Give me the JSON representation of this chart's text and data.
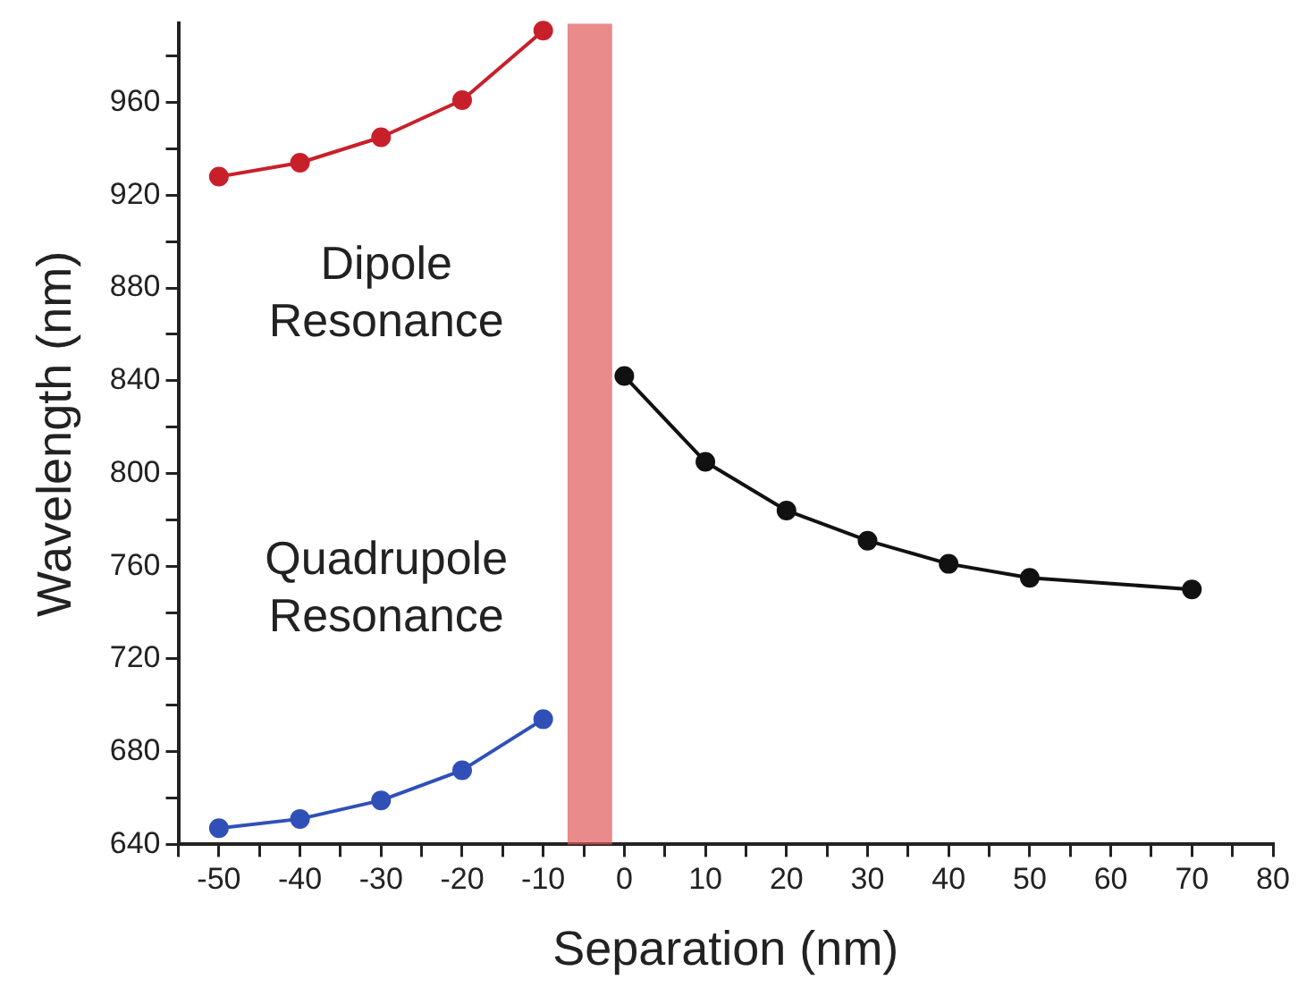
{
  "chart_data": {
    "type": "line",
    "xlabel": "Separation (nm)",
    "ylabel": "Wavelength (nm)",
    "xlim": [
      -55,
      80
    ],
    "xticks": [
      {
        "value": -55,
        "label": null
      },
      -50,
      {
        "value": -45,
        "label": null
      },
      -40,
      {
        "value": -35,
        "label": null
      },
      -30,
      {
        "value": -25,
        "label": null
      },
      -20,
      {
        "value": -15,
        "label": null
      },
      -10,
      {
        "value": -5,
        "label": null
      },
      0,
      {
        "value": 5,
        "label": null
      },
      10,
      {
        "value": 15,
        "label": null
      },
      20,
      {
        "value": 25,
        "label": null
      },
      30,
      {
        "value": 35,
        "label": null
      },
      40,
      {
        "value": 45,
        "label": null
      },
      50,
      {
        "value": 55,
        "label": null
      },
      60,
      {
        "value": 65,
        "label": null
      },
      70,
      {
        "value": 75,
        "label": null
      },
      80
    ],
    "ylim": [
      640,
      994
    ],
    "yticks": [
      640,
      {
        "value": 660,
        "label": null
      },
      680,
      {
        "value": 700,
        "label": null
      },
      720,
      {
        "value": 740,
        "label": null
      },
      760,
      {
        "value": 780,
        "label": null
      },
      800,
      {
        "value": 820,
        "label": null
      },
      840,
      {
        "value": 860,
        "label": null
      },
      880,
      {
        "value": 900,
        "label": null
      },
      920,
      {
        "value": 940,
        "label": null
      },
      960,
      {
        "value": 980,
        "label": null
      }
    ],
    "grid": false,
    "legend": false,
    "marker": "circle",
    "line_style": "solid",
    "series": [
      {
        "color": "#c8202a",
        "x": [
          -50,
          -40,
          -30,
          -20,
          -10
        ],
        "values": [
          928,
          934,
          945,
          961,
          991
        ]
      },
      {
        "color": "#3050b8",
        "x": [
          -50,
          -40,
          -30,
          -20,
          -10
        ],
        "values": [
          647,
          651,
          659,
          672,
          694
        ]
      },
      {
        "color": "#111111",
        "x": [
          0,
          10,
          20,
          30,
          40,
          50,
          70
        ],
        "values": [
          842,
          805,
          784,
          771,
          761,
          755,
          750
        ]
      }
    ],
    "bands": [
      {
        "axis": "x",
        "from": -7,
        "to": -1.5,
        "color": "#e05a5a"
      }
    ],
    "annotations": [
      "Dipole\nResonance",
      "Quadrupole\nResonance"
    ]
  }
}
